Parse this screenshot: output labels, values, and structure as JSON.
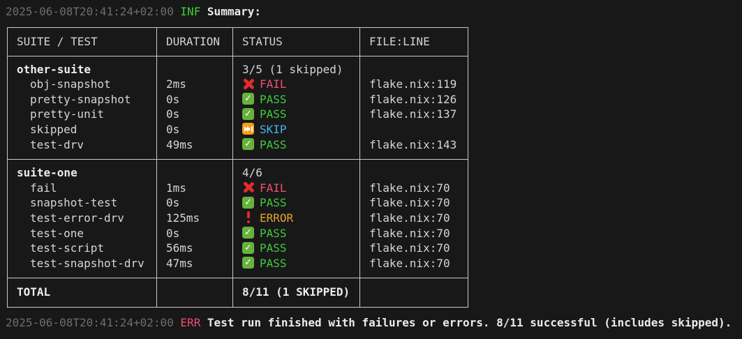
{
  "log_top": {
    "timestamp": "2025-06-08T20:41:24+02:00",
    "level": "INF",
    "message": "Summary:"
  },
  "log_bottom": {
    "timestamp": "2025-06-08T20:41:24+02:00",
    "level": "ERR",
    "message": "Test run finished with failures or errors. 8/11 successful (includes skipped)."
  },
  "table": {
    "headers": [
      "SUITE / TEST",
      "DURATION",
      "STATUS",
      "FILE:LINE"
    ],
    "sections": [
      {
        "suite": "other-suite",
        "summary": "3/5 (1 skipped)",
        "rows": [
          {
            "test": "obj-snapshot",
            "duration": "2ms",
            "status": "FAIL",
            "status_kind": "fail",
            "file_line": "flake.nix:119"
          },
          {
            "test": "pretty-snapshot",
            "duration": "0s",
            "status": "PASS",
            "status_kind": "pass",
            "file_line": "flake.nix:126"
          },
          {
            "test": "pretty-unit",
            "duration": "0s",
            "status": "PASS",
            "status_kind": "pass",
            "file_line": "flake.nix:137"
          },
          {
            "test": "skipped",
            "duration": "0s",
            "status": "SKIP",
            "status_kind": "skip",
            "file_line": ""
          },
          {
            "test": "test-drv",
            "duration": "49ms",
            "status": "PASS",
            "status_kind": "pass",
            "file_line": "flake.nix:143"
          }
        ]
      },
      {
        "suite": "suite-one",
        "summary": "4/6",
        "rows": [
          {
            "test": "fail",
            "duration": "1ms",
            "status": "FAIL",
            "status_kind": "fail",
            "file_line": "flake.nix:70"
          },
          {
            "test": "snapshot-test",
            "duration": "0s",
            "status": "PASS",
            "status_kind": "pass",
            "file_line": "flake.nix:70"
          },
          {
            "test": "test-error-drv",
            "duration": "125ms",
            "status": "ERROR",
            "status_kind": "error",
            "file_line": "flake.nix:70"
          },
          {
            "test": "test-one",
            "duration": "0s",
            "status": "PASS",
            "status_kind": "pass",
            "file_line": "flake.nix:70"
          },
          {
            "test": "test-script",
            "duration": "56ms",
            "status": "PASS",
            "status_kind": "pass",
            "file_line": "flake.nix:70"
          },
          {
            "test": "test-snapshot-drv",
            "duration": "47ms",
            "status": "PASS",
            "status_kind": "pass",
            "file_line": "flake.nix:70"
          }
        ]
      }
    ],
    "total": {
      "label": "TOTAL",
      "summary": "8/11 (1 SKIPPED)"
    }
  },
  "icons": {
    "fail": "cross-mark-icon",
    "pass": "check-mark-icon",
    "skip": "skip-forward-icon",
    "error": "exclamation-mark-icon"
  },
  "colors": {
    "background": "#181818",
    "table_border": "#c9c9c9",
    "timestamp": "#6e6e6e",
    "info_level": "#3fd23f",
    "error_level": "#ec4f72",
    "pass_text": "#3fcb3f",
    "fail_text": "#ec4f72",
    "skip_text": "#3cb8e8",
    "error_text": "#e2a32b",
    "pass_icon_bg": "#66b23c",
    "skip_icon_bg": "#f1a01b",
    "fail_icon": "#e22c2c"
  }
}
